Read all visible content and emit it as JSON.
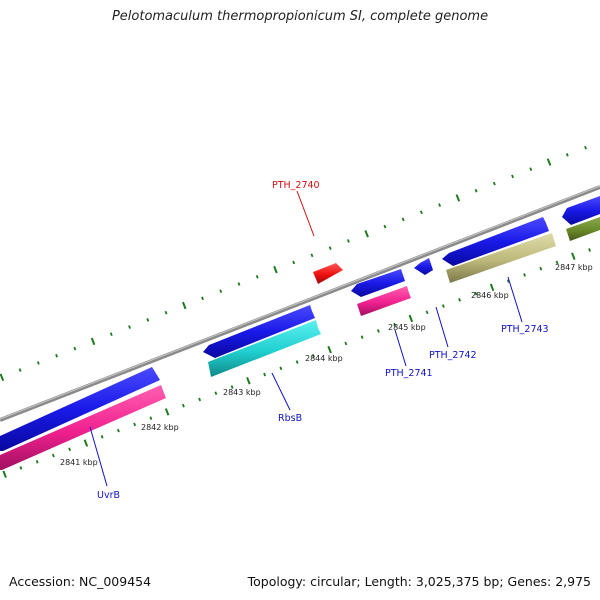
{
  "title": "Pelotomaculum thermopropionicum SI, complete genome",
  "footer": {
    "accession": "Accession: NC_009454",
    "summary": "Topology: circular; Length: 3,025,375 bp; Genes: 2,975"
  },
  "colors": {
    "backbone": "#8a8a8a",
    "tick": "#1d7a1d",
    "label_blue": "#1010c8",
    "label_red": "#d01010"
  },
  "scale_labels": [
    "2841 kbp",
    "2842 kbp",
    "2843 kbp",
    "2844 kbp",
    "2845 kbp",
    "2846 kbp",
    "2847 kbp"
  ],
  "genes": [
    {
      "label": "UvrB",
      "color": "#1010c8"
    },
    {
      "label": "RbsB",
      "color": "#1010c8"
    },
    {
      "label": "PTH_2740",
      "color": "#d01010"
    },
    {
      "label": "PTH_2741",
      "color": "#1010c8"
    },
    {
      "label": "PTH_2742",
      "color": "#1010c8"
    },
    {
      "label": "PTH_2743",
      "color": "#1010c8"
    }
  ]
}
